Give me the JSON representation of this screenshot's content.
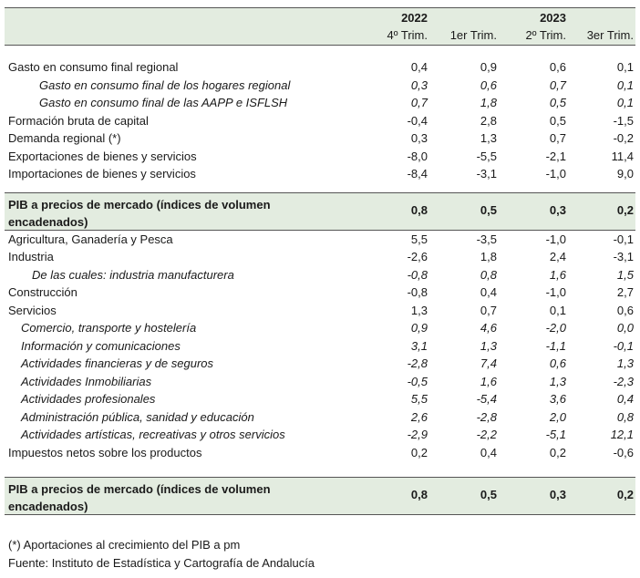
{
  "header": {
    "year_2022": "2022",
    "year_2023": "2023",
    "quarters": [
      "4º Trim.",
      "1er Trim.",
      "2º Trim.",
      "3er Trim."
    ]
  },
  "block1": [
    {
      "label": "Gasto en consumo final regional",
      "values": [
        "0,4",
        "0,9",
        "0,6",
        "0,1"
      ]
    },
    {
      "label": "Gasto en consumo final de los hogares regional",
      "values": [
        "0,3",
        "0,6",
        "0,7",
        "0,1"
      ]
    },
    {
      "label": "Gasto en consumo final de las AAPP e ISFLSH",
      "values": [
        "0,7",
        "1,8",
        "0,5",
        "0,1"
      ]
    },
    {
      "label": "Formación bruta de capital",
      "values": [
        "-0,4",
        "2,8",
        "0,5",
        "-1,5"
      ]
    },
    {
      "label": "Demanda regional (*)",
      "values": [
        "0,3",
        "1,3",
        "0,7",
        "-0,2"
      ]
    },
    {
      "label": "Exportaciones de bienes y servicios",
      "values": [
        "-8,0",
        "-5,5",
        "-2,1",
        "11,4"
      ]
    },
    {
      "label": "Importaciones de bienes y servicios",
      "values": [
        "-8,4",
        "-3,1",
        "-1,0",
        "9,0"
      ]
    }
  ],
  "total1": {
    "label": "PIB a precios de mercado (índices de volumen encadenados)",
    "values": [
      "0,8",
      "0,5",
      "0,3",
      "0,2"
    ]
  },
  "block2": [
    {
      "label": "Agricultura, Ganadería y Pesca",
      "values": [
        "5,5",
        "-3,5",
        "-1,0",
        "-0,1"
      ]
    },
    {
      "label": "Industria",
      "values": [
        "-2,6",
        "1,8",
        "2,4",
        "-3,1"
      ]
    },
    {
      "label": "De las cuales: industria manufacturera",
      "values": [
        "-0,8",
        "0,8",
        "1,6",
        "1,5"
      ]
    },
    {
      "label": "Construcción",
      "values": [
        "-0,8",
        "0,4",
        "-1,0",
        "2,7"
      ]
    },
    {
      "label": "Servicios",
      "values": [
        "1,3",
        "0,7",
        "0,1",
        "0,6"
      ]
    },
    {
      "label": "Comercio, transporte y hostelería",
      "values": [
        "0,9",
        "4,6",
        "-2,0",
        "0,0"
      ]
    },
    {
      "label": "Información y comunicaciones",
      "values": [
        "3,1",
        "1,3",
        "-1,1",
        "-0,1"
      ]
    },
    {
      "label": "Actividades financieras y de seguros",
      "values": [
        "-2,8",
        "7,4",
        "0,6",
        "1,3"
      ]
    },
    {
      "label": "Actividades Inmobiliarias",
      "values": [
        "-0,5",
        "1,6",
        "1,3",
        "-2,3"
      ]
    },
    {
      "label": "Actividades profesionales",
      "values": [
        "5,5",
        "-5,4",
        "3,6",
        "0,4"
      ]
    },
    {
      "label": "Administración pública, sanidad y educación",
      "values": [
        "2,6",
        "-2,8",
        "2,0",
        "0,8"
      ]
    },
    {
      "label": "Actividades artísticas, recreativas y otros servicios",
      "values": [
        "-2,9",
        "-2,2",
        "-5,1",
        "12,1"
      ]
    },
    {
      "label": "Impuestos netos sobre los productos",
      "values": [
        "0,2",
        "0,4",
        "0,2",
        "-0,6"
      ]
    }
  ],
  "total2": {
    "label": "PIB a precios de mercado (índices de volumen encadenados)",
    "values": [
      "0,8",
      "0,5",
      "0,3",
      "0,2"
    ]
  },
  "notes": {
    "note1": "(*) Aportaciones al crecimiento del PIB a pm",
    "note2": "Fuente: Instituto de Estadística y Cartografía de Andalucía"
  }
}
